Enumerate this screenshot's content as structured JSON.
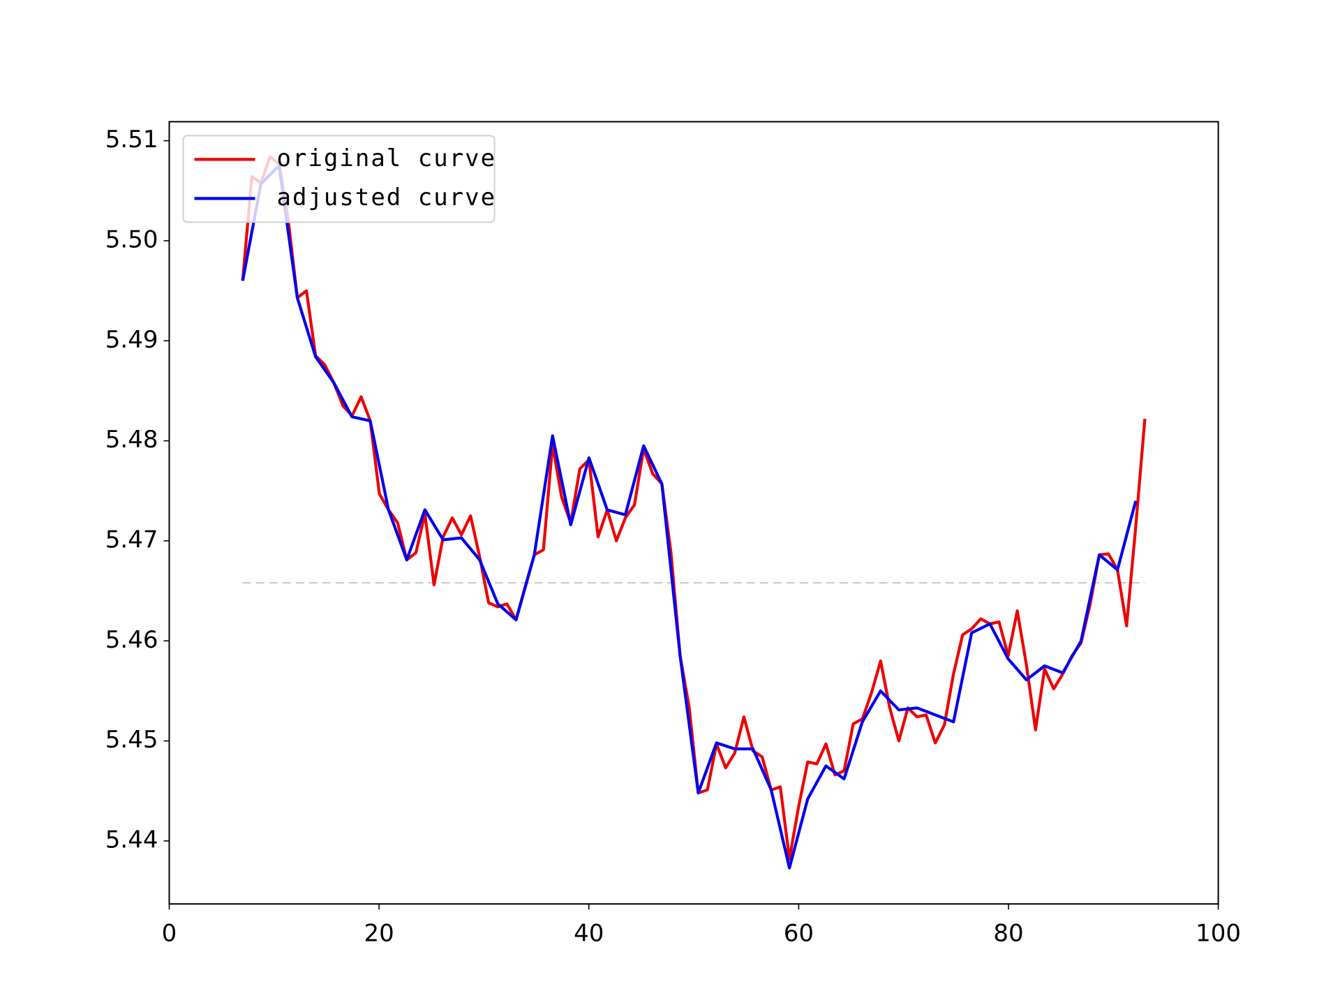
{
  "chart_data": {
    "type": "line",
    "series": [
      {
        "name": "original curve",
        "color": "#ee0000",
        "x": [
          7.0,
          7.87,
          8.74,
          9.61,
          10.47,
          11.34,
          12.21,
          13.08,
          13.95,
          14.82,
          15.69,
          16.56,
          17.42,
          18.29,
          19.16,
          20.03,
          20.9,
          21.77,
          22.64,
          23.51,
          24.37,
          25.24,
          26.11,
          26.98,
          27.85,
          28.72,
          29.59,
          30.45,
          31.32,
          32.19,
          33.06,
          33.93,
          34.8,
          35.67,
          36.54,
          37.4,
          38.27,
          39.14,
          40.01,
          40.88,
          41.75,
          42.62,
          43.48,
          44.35,
          45.22,
          46.09,
          46.96,
          47.83,
          48.7,
          49.57,
          50.43,
          51.3,
          52.17,
          53.04,
          53.91,
          54.78,
          55.65,
          56.52,
          57.38,
          58.25,
          59.12,
          59.99,
          60.86,
          61.73,
          62.6,
          63.46,
          64.33,
          65.2,
          66.07,
          66.94,
          67.81,
          68.68,
          69.55,
          70.41,
          71.28,
          72.15,
          73.02,
          73.89,
          74.76,
          75.63,
          76.49,
          77.36,
          78.23,
          79.1,
          79.97,
          80.84,
          81.71,
          82.58,
          83.44,
          84.31,
          85.18,
          86.05,
          86.92,
          87.79,
          88.66,
          89.53,
          90.39,
          91.26,
          92.13,
          93.0
        ],
        "values": [
          5.496,
          5.5064,
          5.5058,
          5.5084,
          5.5077,
          5.5021,
          5.4943,
          5.495,
          5.4885,
          5.4876,
          5.4858,
          5.4835,
          5.4825,
          5.4844,
          5.482,
          5.4747,
          5.4731,
          5.4718,
          5.4681,
          5.4688,
          5.4727,
          5.4656,
          5.4704,
          5.4723,
          5.4706,
          5.4725,
          5.4684,
          5.4638,
          5.4634,
          5.4637,
          5.4621,
          5.4654,
          5.4686,
          5.4691,
          5.4796,
          5.4744,
          5.4718,
          5.4772,
          5.4781,
          5.4704,
          5.4731,
          5.47,
          5.4723,
          5.4736,
          5.4792,
          5.4767,
          5.4757,
          5.4688,
          5.4585,
          5.4533,
          5.4448,
          5.4451,
          5.4497,
          5.4473,
          5.4488,
          5.4524,
          5.449,
          5.4484,
          5.4451,
          5.4454,
          5.4382,
          5.4434,
          5.4479,
          5.4477,
          5.4497,
          5.4466,
          5.447,
          5.4517,
          5.4522,
          5.4548,
          5.458,
          5.4533,
          5.45,
          5.4533,
          5.4524,
          5.4526,
          5.4498,
          5.4516,
          5.4567,
          5.4606,
          5.4612,
          5.4622,
          5.4617,
          5.4619,
          5.4585,
          5.463,
          5.4576,
          5.4511,
          5.4572,
          5.4552,
          5.4567,
          5.4585,
          5.4598,
          5.4637,
          5.4686,
          5.4687,
          5.4671,
          5.4615,
          5.4714,
          5.4822
        ]
      },
      {
        "name": "adjusted curve",
        "color": "#0000ee",
        "x": [
          7.0,
          8.74,
          10.47,
          12.21,
          13.95,
          15.69,
          17.42,
          19.16,
          20.9,
          22.64,
          24.37,
          26.11,
          27.85,
          29.59,
          31.32,
          33.06,
          34.8,
          36.54,
          38.27,
          40.01,
          41.75,
          43.48,
          45.22,
          46.96,
          48.7,
          50.43,
          52.17,
          53.91,
          55.65,
          57.38,
          59.12,
          60.86,
          62.6,
          64.33,
          66.07,
          67.81,
          69.55,
          71.28,
          73.02,
          74.76,
          76.49,
          78.23,
          79.97,
          81.71,
          83.44,
          85.18,
          86.92,
          88.66,
          90.39,
          92.13
        ],
        "values": [
          5.496,
          5.5057,
          5.5075,
          5.4943,
          5.4884,
          5.4858,
          5.4824,
          5.482,
          5.4731,
          5.4681,
          5.4731,
          5.4701,
          5.4703,
          5.4681,
          5.4637,
          5.4621,
          5.4686,
          5.4805,
          5.4716,
          5.4783,
          5.4731,
          5.4726,
          5.4795,
          5.4757,
          5.4585,
          5.4448,
          5.4498,
          5.4492,
          5.4492,
          5.4451,
          5.4373,
          5.4442,
          5.4475,
          5.4462,
          5.4519,
          5.455,
          5.4531,
          5.4533,
          5.4526,
          5.4519,
          5.4608,
          5.4617,
          5.4582,
          5.4561,
          5.4575,
          5.4568,
          5.46,
          5.4686,
          5.4671,
          5.474
        ]
      }
    ],
    "reference_line": {
      "value": 5.4658,
      "color": "#c8c8c8"
    },
    "xlim": [
      0,
      100
    ],
    "xticks": [
      0,
      20,
      40,
      60,
      80,
      100
    ],
    "ylim": [
      5.4337,
      5.5119
    ],
    "yticks": [
      5.44,
      5.45,
      5.46,
      5.47,
      5.48,
      5.49,
      {
        "value": 5.5,
        "label": "5.50"
      },
      5.51
    ],
    "legend": "upper left"
  }
}
